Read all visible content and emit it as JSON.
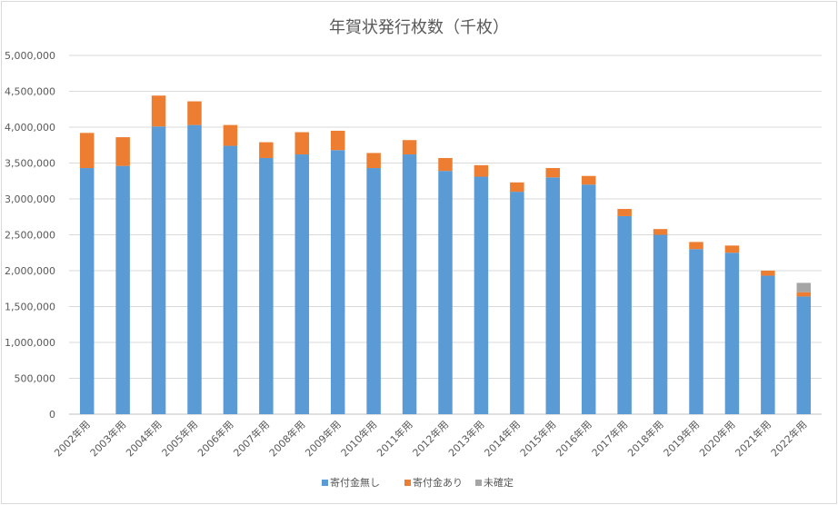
{
  "chart_data": {
    "type": "bar",
    "stacked": true,
    "title": "年賀状発行枚数（千枚）",
    "categories": [
      "2002年用",
      "2003年用",
      "2004年用",
      "2005年用",
      "2006年用",
      "2007年用",
      "2008年用",
      "2009年用",
      "2010年用",
      "2011年用",
      "2012年用",
      "2013年用",
      "2014年用",
      "2015年用",
      "2016年用",
      "2017年用",
      "2018年用",
      "2019年用",
      "2020年用",
      "2021年用",
      "2022年用"
    ],
    "series": [
      {
        "name": "寄付金無し",
        "color": "#5b9bd5",
        "values": [
          3430000,
          3460000,
          4010000,
          4030000,
          3740000,
          3570000,
          3620000,
          3680000,
          3430000,
          3620000,
          3390000,
          3310000,
          3100000,
          3300000,
          3200000,
          2760000,
          2500000,
          2300000,
          2250000,
          1930000,
          1640000
        ]
      },
      {
        "name": "寄付金あり",
        "color": "#ed7d31",
        "values": [
          490000,
          400000,
          430000,
          330000,
          290000,
          220000,
          310000,
          270000,
          210000,
          200000,
          180000,
          160000,
          130000,
          130000,
          120000,
          100000,
          80000,
          100000,
          100000,
          70000,
          60000
        ]
      },
      {
        "name": "未確定",
        "color": "#a5a5a5",
        "values": [
          0,
          0,
          0,
          0,
          0,
          0,
          0,
          0,
          0,
          0,
          0,
          0,
          0,
          0,
          0,
          0,
          0,
          0,
          0,
          0,
          130000
        ]
      }
    ],
    "ylim": [
      0,
      5000000
    ],
    "y_ticks": [
      "0",
      "500,000",
      "1,000,000",
      "1,500,000",
      "2,000,000",
      "2,500,000",
      "3,000,000",
      "3,500,000",
      "4,000,000",
      "4,500,000",
      "5,000,000"
    ],
    "grid": true,
    "legend_position": "bottom"
  }
}
